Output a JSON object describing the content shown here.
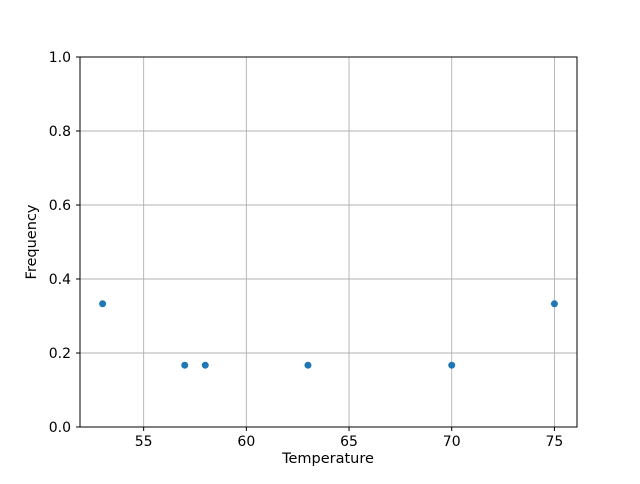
{
  "chart_data": {
    "type": "scatter",
    "title": "",
    "xlabel": "Temperature",
    "ylabel": "Frequency",
    "xlim": [
      51.9,
      76.1
    ],
    "ylim": [
      0.0,
      1.0
    ],
    "grid": true,
    "legend": null,
    "marker_color": "#1f77b4",
    "grid_color": "#b0b0b0",
    "frame_color": "#000000",
    "background_color": "#ffffff",
    "xticks": [
      {
        "v": 55,
        "label": "55"
      },
      {
        "v": 60,
        "label": "60"
      },
      {
        "v": 65,
        "label": "65"
      },
      {
        "v": 70,
        "label": "70"
      },
      {
        "v": 75,
        "label": "75"
      }
    ],
    "yticks": [
      {
        "v": 0.0,
        "label": "0.0"
      },
      {
        "v": 0.2,
        "label": "0.2"
      },
      {
        "v": 0.4,
        "label": "0.4"
      },
      {
        "v": 0.6,
        "label": "0.6"
      },
      {
        "v": 0.8,
        "label": "0.8"
      },
      {
        "v": 1.0,
        "label": "1.0"
      }
    ],
    "points": [
      {
        "x": 53,
        "y": 0.333
      },
      {
        "x": 57,
        "y": 0.167
      },
      {
        "x": 58,
        "y": 0.167
      },
      {
        "x": 63,
        "y": 0.167
      },
      {
        "x": 70,
        "y": 0.167
      },
      {
        "x": 75,
        "y": 0.333
      }
    ]
  }
}
